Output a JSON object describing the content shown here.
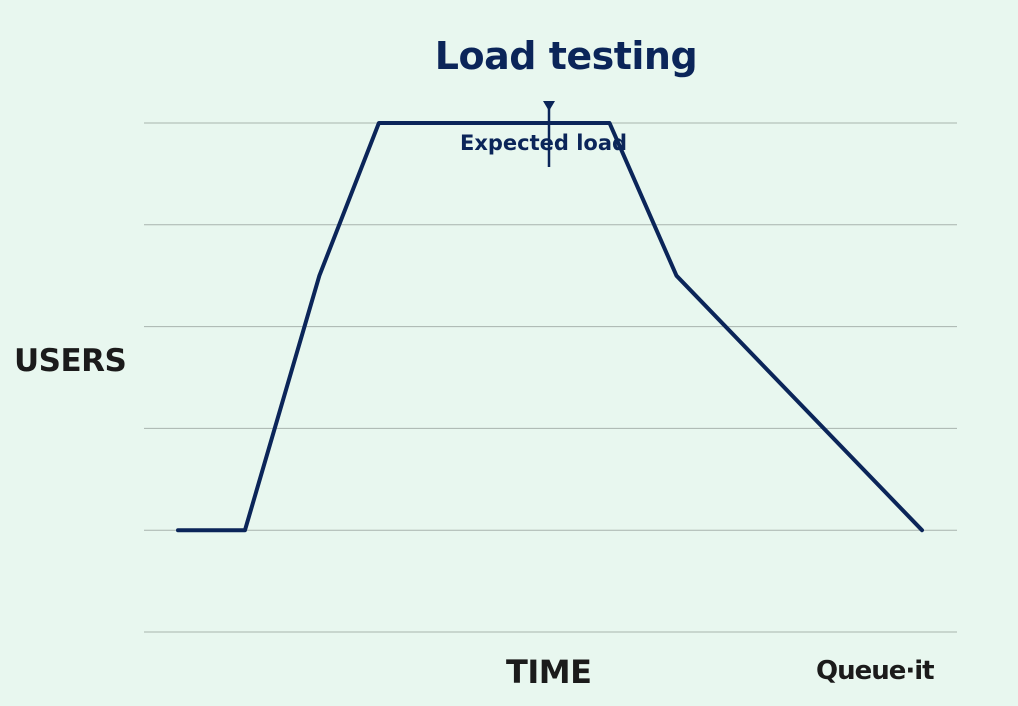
{
  "chart_data": {
    "type": "line",
    "title": "Load testing",
    "xlabel": "TIME",
    "ylabel": "USERS",
    "grid": true,
    "ylim": [
      0,
      5
    ],
    "xlim": [
      0,
      100
    ],
    "series": [
      {
        "x": [
          0,
          9,
          19,
          27,
          58,
          67,
          100
        ],
        "y": [
          1,
          1,
          3.5,
          5,
          5,
          3.5,
          1
        ],
        "color": "#0b2559"
      }
    ],
    "annotations": [
      {
        "text": "Expected load",
        "x": 50,
        "y": 5,
        "arrow": "down"
      }
    ]
  },
  "branding": {
    "logo_text": "Queue·it"
  },
  "colors": {
    "background": "#e8f7ef",
    "line": "#0b2559",
    "grid": "#a8b4ae",
    "axis_text": "#1b1b1b"
  }
}
